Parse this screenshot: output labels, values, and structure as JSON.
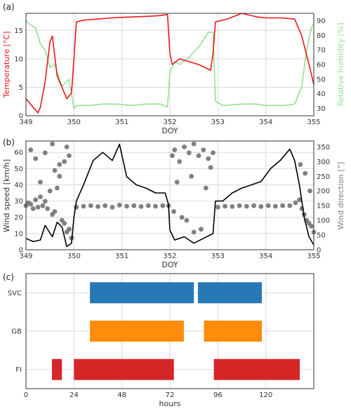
{
  "chart_data": [
    {
      "panel": "(a)",
      "type": "line",
      "xlabel": "DOY",
      "ylabel_left": "Temperature [°C]",
      "ylabel_right": "Relative humidity [%]",
      "xlim": [
        349,
        355
      ],
      "ylim_left": [
        0,
        18
      ],
      "ylim_right": [
        25,
        95
      ],
      "xticks": [
        349,
        350,
        351,
        352,
        353,
        354,
        355
      ],
      "yticks_left": [
        0,
        5,
        10,
        15
      ],
      "yticks_right": [
        30,
        40,
        50,
        60,
        70,
        80,
        90
      ],
      "grid": true,
      "series": [
        {
          "axis": "left",
          "color": "#e8191b",
          "x": [
            349.0,
            349.1,
            349.15,
            349.25,
            349.3,
            349.4,
            349.5,
            349.55,
            349.65,
            349.75,
            349.85,
            349.95,
            350.0,
            350.05,
            350.2,
            350.5,
            350.8,
            351.0,
            351.3,
            351.6,
            351.8,
            351.95,
            352.0,
            352.05,
            352.2,
            352.4,
            352.6,
            352.85,
            352.9,
            352.95,
            353.2,
            353.5,
            353.8,
            354.0,
            354.3,
            354.6,
            354.75,
            354.9,
            355.0
          ],
          "y": [
            3,
            2,
            1.5,
            0.5,
            1.5,
            6,
            13,
            14,
            7,
            5,
            3,
            4,
            10,
            16.5,
            16.8,
            17,
            17.2,
            17.3,
            17.4,
            17.5,
            17.6,
            17.8,
            11,
            9,
            10,
            9.5,
            9,
            8,
            11,
            16.5,
            17,
            18,
            17.4,
            17.2,
            17.2,
            17,
            14,
            9,
            5.5
          ]
        },
        {
          "axis": "right",
          "color": "#90e390",
          "x": [
            349.0,
            349.1,
            349.2,
            349.3,
            349.4,
            349.5,
            349.6,
            349.75,
            349.9,
            350.0,
            350.05,
            350.3,
            350.6,
            350.9,
            351.2,
            351.5,
            351.8,
            351.95,
            352.0,
            352.1,
            352.2,
            352.4,
            352.6,
            352.8,
            352.9,
            352.95,
            353.1,
            353.5,
            353.8,
            354.0,
            354.4,
            354.6,
            354.75,
            354.85,
            354.95,
            355.0
          ],
          "y": [
            90,
            87,
            85,
            74,
            70,
            58,
            60,
            45,
            50,
            30,
            32,
            32,
            33,
            33,
            32,
            33,
            33,
            31,
            55,
            62,
            60,
            65,
            72,
            82,
            82,
            35,
            32,
            33,
            33,
            32,
            32,
            33,
            45,
            70,
            85,
            88
          ]
        }
      ]
    },
    {
      "panel": "(b)",
      "type": "line",
      "xlabel": "DOY",
      "ylabel_left": "Wind speed [km/h]",
      "ylabel_right": "Wind direction [°]",
      "xlim": [
        349,
        355
      ],
      "ylim_left": [
        0,
        67
      ],
      "ylim_right": [
        0,
        370
      ],
      "xticks": [
        349,
        350,
        351,
        352,
        353,
        354,
        355
      ],
      "yticks_left": [
        0,
        10,
        20,
        30,
        40,
        50,
        60
      ],
      "yticks_right": [
        0,
        50,
        100,
        150,
        200,
        250,
        300,
        350
      ],
      "grid": true,
      "series": [
        {
          "axis": "left",
          "type": "line",
          "color": "#000000",
          "x": [
            349.0,
            349.15,
            349.3,
            349.4,
            349.55,
            349.65,
            349.75,
            349.85,
            349.95,
            350.0,
            350.05,
            350.2,
            350.4,
            350.6,
            350.8,
            350.95,
            351.1,
            351.3,
            351.5,
            351.7,
            351.9,
            351.97,
            352.0,
            352.1,
            352.3,
            352.5,
            352.7,
            352.9,
            352.95,
            353.1,
            353.3,
            353.5,
            353.7,
            353.9,
            354.1,
            354.3,
            354.5,
            354.6,
            354.7,
            354.8,
            354.9,
            355.0
          ],
          "y": [
            7,
            5,
            6,
            15,
            8,
            17,
            14,
            2,
            4,
            20,
            30,
            40,
            55,
            60,
            55,
            65,
            45,
            40,
            38,
            35,
            35,
            28,
            12,
            6,
            8,
            4,
            7,
            10,
            30,
            30,
            35,
            38,
            40,
            42,
            50,
            55,
            62,
            55,
            40,
            20,
            8,
            3
          ]
        },
        {
          "axis": "right",
          "type": "scatter",
          "color": "#808080",
          "x": [
            349.0,
            349.05,
            349.1,
            349.15,
            349.2,
            349.25,
            349.3,
            349.35,
            349.4,
            349.45,
            349.5,
            349.55,
            349.6,
            349.65,
            349.7,
            349.75,
            349.8,
            349.85,
            349.9,
            349.95,
            349.1,
            349.2,
            349.4,
            349.55,
            349.7,
            349.85,
            349.9,
            349.3,
            349.6,
            349.8,
            350.05,
            350.2,
            350.35,
            350.5,
            350.65,
            350.8,
            350.95,
            351.1,
            351.25,
            351.4,
            351.55,
            351.7,
            351.85,
            351.97,
            352.05,
            352.1,
            352.2,
            352.3,
            352.4,
            352.5,
            352.6,
            352.7,
            352.8,
            352.9,
            352.08,
            352.25,
            352.35,
            352.5,
            352.65,
            352.15,
            352.45,
            352.75,
            352.85,
            353.0,
            353.15,
            353.3,
            353.45,
            353.6,
            353.75,
            353.9,
            354.05,
            354.2,
            354.35,
            354.5,
            354.62,
            354.7,
            354.75,
            354.8,
            354.85,
            354.9,
            354.95,
            355.0,
            354.72,
            354.82,
            354.92
          ],
          "y": [
            150,
            160,
            155,
            140,
            170,
            145,
            180,
            150,
            165,
            140,
            200,
            120,
            130,
            210,
            250,
            100,
            90,
            60,
            70,
            40,
            340,
            310,
            330,
            360,
            290,
            350,
            320,
            230,
            270,
            300,
            145,
            148,
            150,
            147,
            150,
            145,
            152,
            148,
            150,
            147,
            150,
            148,
            150,
            150,
            320,
            340,
            300,
            350,
            330,
            360,
            320,
            340,
            310,
            330,
            130,
            110,
            100,
            60,
            70,
            230,
            250,
            210,
            280,
            145,
            148,
            147,
            150,
            148,
            150,
            147,
            150,
            148,
            150,
            150,
            160,
            170,
            140,
            120,
            100,
            90,
            80,
            60,
            290,
            260,
            200
          ]
        }
      ]
    },
    {
      "panel": "(c)",
      "type": "bar",
      "orientation": "horizontal",
      "xlabel": "hours",
      "xlim": [
        0,
        144
      ],
      "xticks": [
        0,
        24,
        48,
        72,
        96,
        120
      ],
      "categories": [
        "SVC",
        "GB",
        "FI"
      ],
      "grid": true,
      "series": [
        {
          "category": "SVC",
          "color": "#2878b5",
          "intervals": [
            [
              32,
              84
            ],
            [
              86,
              118
            ]
          ]
        },
        {
          "category": "GB",
          "color": "#ff8c0a",
          "intervals": [
            [
              32,
              79
            ],
            [
              89,
              118
            ]
          ]
        },
        {
          "category": "FI",
          "color": "#d62728",
          "intervals": [
            [
              13,
              18
            ],
            [
              24,
              74
            ],
            [
              94,
              137
            ]
          ]
        }
      ]
    }
  ]
}
